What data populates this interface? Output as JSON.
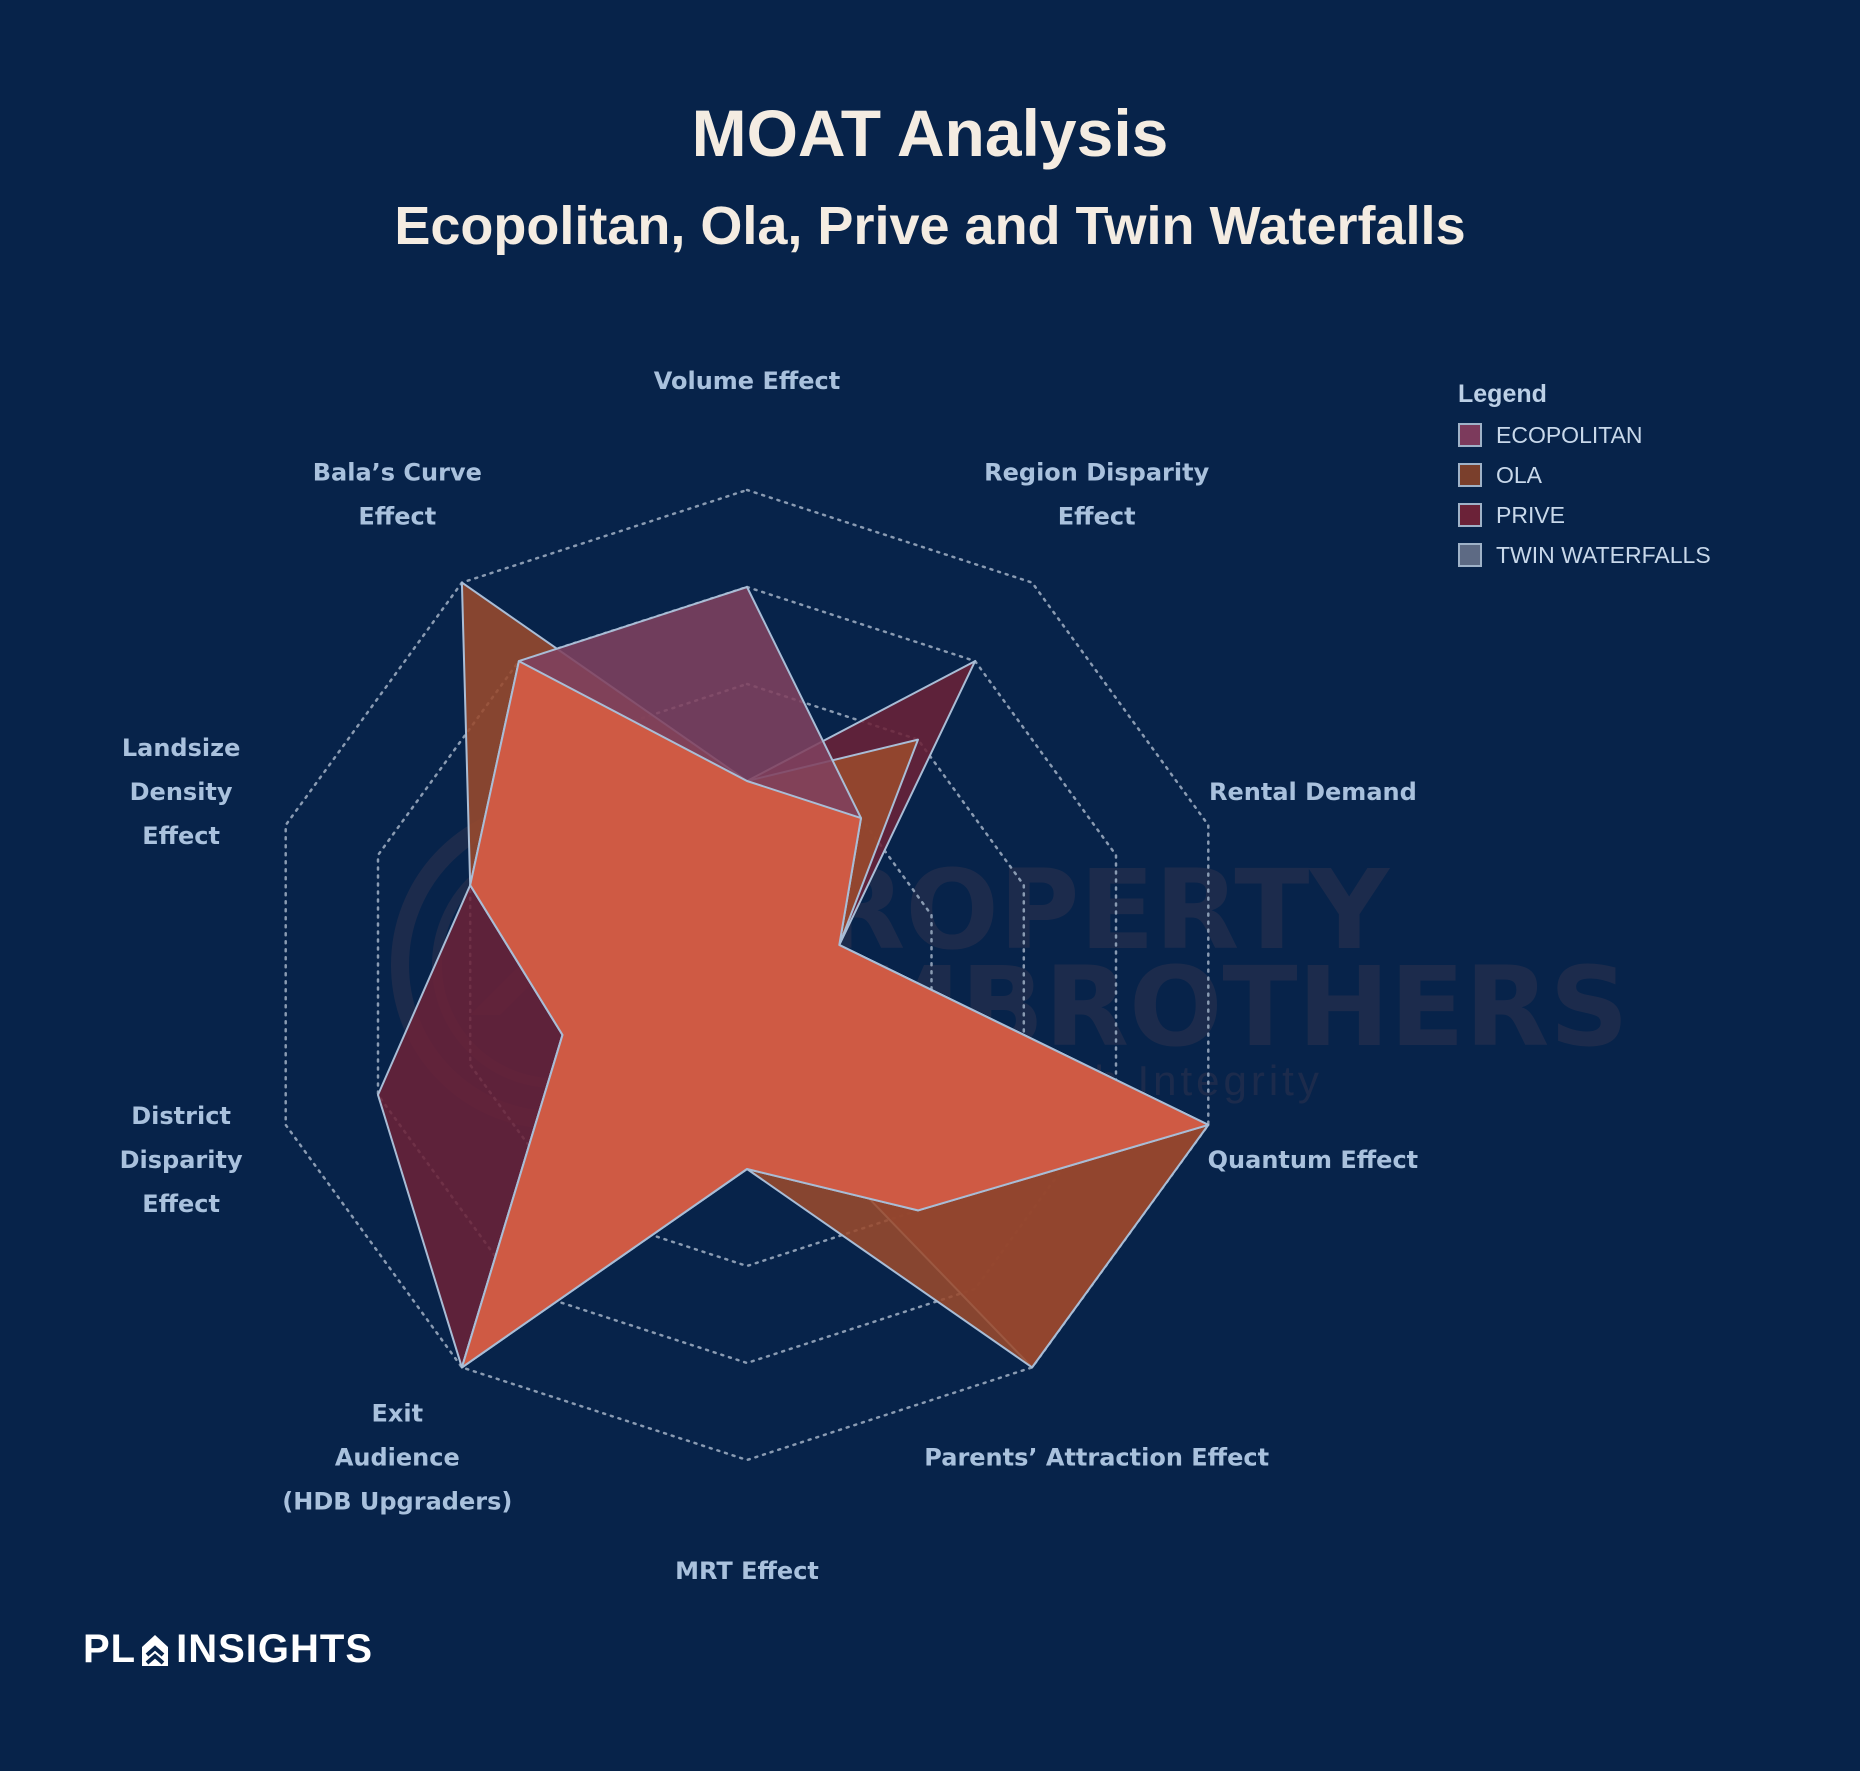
{
  "title": "MOAT Analysis",
  "subtitle": "Ecopolitan, Ola, Prive and Twin Waterfalls",
  "legend": {
    "title": "Legend",
    "items": [
      {
        "label": "ECOPOLITAN",
        "color": "#7c3a5c"
      },
      {
        "label": "OLA",
        "color": "#7a3f2c"
      },
      {
        "label": "PRIVE",
        "color": "#6b2238"
      },
      {
        "label": "TWIN WATERFALLS",
        "color": "#5d6a84"
      }
    ]
  },
  "brand": {
    "left": "PL",
    "right": "INSIGHTS"
  },
  "watermark": {
    "line1": "PROPERTY",
    "line2": "LIMBROTHERS",
    "tagline": "Real Estate With Integrity"
  },
  "chart_data": {
    "type": "radar",
    "max": 5,
    "axes": [
      {
        "key": "volume",
        "label": [
          "Volume Effect"
        ]
      },
      {
        "key": "region",
        "label": [
          "Region Disparity",
          "Effect"
        ]
      },
      {
        "key": "rental",
        "label": [
          "Rental Demand"
        ]
      },
      {
        "key": "quantum",
        "label": [
          "Quantum Effect"
        ]
      },
      {
        "key": "parents",
        "label": [
          "Parents’ Attraction Effect"
        ]
      },
      {
        "key": "mrt",
        "label": [
          "MRT Effect"
        ]
      },
      {
        "key": "exit",
        "label": [
          "Exit",
          "Audience",
          "(HDB Upgraders)"
        ]
      },
      {
        "key": "district",
        "label": [
          "District",
          "Disparity",
          "Effect"
        ]
      },
      {
        "key": "landsize",
        "label": [
          "Landsize",
          "Density",
          "Effect"
        ]
      },
      {
        "key": "bala",
        "label": [
          "Bala’s Curve",
          "Effect"
        ]
      }
    ],
    "series": [
      {
        "name": "PRIVE",
        "color": "#6b2238",
        "opacity": 0.88,
        "values": [
          2,
          4,
          1,
          5,
          5,
          1,
          5,
          4,
          3,
          4
        ]
      },
      {
        "name": "OLA",
        "color": "#9a4a2c",
        "opacity": 0.88,
        "values": [
          2,
          3,
          1,
          5,
          5,
          2,
          5,
          2,
          3,
          5
        ]
      },
      {
        "name": "ECOPOLITAN",
        "color": "#80415f",
        "opacity": 0.88,
        "values": [
          4,
          2,
          1,
          5,
          3,
          2,
          5,
          2,
          3,
          4
        ]
      },
      {
        "name": "TWIN WATERFALLS",
        "color": "#d25c44",
        "opacity": 0.96,
        "values": [
          2,
          2,
          1,
          5,
          3,
          2,
          5,
          2,
          3,
          4
        ]
      }
    ]
  }
}
